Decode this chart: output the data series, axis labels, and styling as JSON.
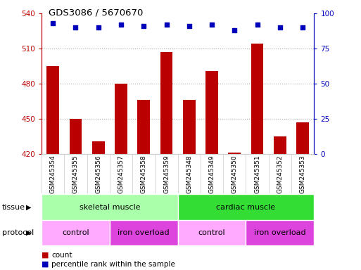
{
  "title": "GDS3086 / 5670670",
  "samples": [
    "GSM245354",
    "GSM245355",
    "GSM245356",
    "GSM245357",
    "GSM245358",
    "GSM245359",
    "GSM245348",
    "GSM245349",
    "GSM245350",
    "GSM245351",
    "GSM245352",
    "GSM245353"
  ],
  "bar_values": [
    495,
    450,
    431,
    480,
    466,
    507,
    466,
    491,
    421,
    514,
    435,
    447
  ],
  "percentile_values": [
    93,
    90,
    90,
    92,
    91,
    92,
    91,
    92,
    88,
    92,
    90,
    90
  ],
  "ylim_left": [
    420,
    540
  ],
  "ylim_right": [
    0,
    100
  ],
  "yticks_left": [
    420,
    450,
    480,
    510,
    540
  ],
  "yticks_right": [
    0,
    25,
    50,
    75,
    100
  ],
  "bar_color": "#bb0000",
  "dot_color": "#0000bb",
  "tissue_groups": [
    {
      "label": "skeletal muscle",
      "start": 0,
      "end": 6,
      "color": "#aaffaa"
    },
    {
      "label": "cardiac muscle",
      "start": 6,
      "end": 12,
      "color": "#33dd33"
    }
  ],
  "protocol_groups": [
    {
      "label": "control",
      "start": 0,
      "end": 3,
      "color": "#ffaaff"
    },
    {
      "label": "iron overload",
      "start": 3,
      "end": 6,
      "color": "#dd44dd"
    },
    {
      "label": "control",
      "start": 6,
      "end": 9,
      "color": "#ffaaff"
    },
    {
      "label": "iron overload",
      "start": 9,
      "end": 12,
      "color": "#dd44dd"
    }
  ],
  "legend_count_color": "#bb0000",
  "legend_pct_color": "#0000bb",
  "grid_color": "#aaaaaa",
  "left_axis_color": "#bb0000",
  "right_axis_color": "#0000bb",
  "bg_color": "#ffffff"
}
